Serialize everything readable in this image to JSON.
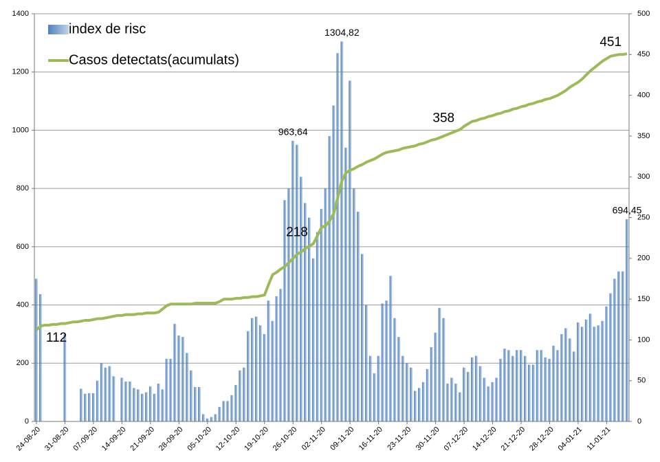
{
  "chart_data": {
    "type": "bar",
    "categories": [
      "24-08-20",
      null,
      null,
      null,
      null,
      null,
      null,
      "31-08-20",
      null,
      null,
      null,
      null,
      null,
      null,
      "07-09-20",
      null,
      null,
      null,
      null,
      null,
      null,
      "14-09-20",
      null,
      null,
      null,
      null,
      null,
      null,
      "21-09-20",
      null,
      null,
      null,
      null,
      null,
      null,
      "28-09-20",
      null,
      null,
      null,
      null,
      null,
      null,
      "05-10-20",
      null,
      null,
      null,
      null,
      null,
      null,
      "12-10-20",
      null,
      null,
      null,
      null,
      null,
      null,
      "19-10-20",
      null,
      null,
      null,
      null,
      null,
      null,
      "26-10-20",
      null,
      null,
      null,
      null,
      null,
      null,
      "02-11-20",
      null,
      null,
      null,
      null,
      null,
      null,
      "09-11-20",
      null,
      null,
      null,
      null,
      null,
      null,
      "16-11-20",
      null,
      null,
      null,
      null,
      null,
      null,
      "23-11-20",
      null,
      null,
      null,
      null,
      null,
      null,
      "30-11-20",
      null,
      null,
      null,
      null,
      null,
      null,
      "07-12-20",
      null,
      null,
      null,
      null,
      null,
      null,
      "14-12-20",
      null,
      null,
      null,
      null,
      null,
      null,
      "21-12-20",
      null,
      null,
      null,
      null,
      null,
      null,
      "28-12-20",
      null,
      null,
      null,
      null,
      null,
      null,
      "04-01-21",
      null,
      null,
      null,
      null,
      null,
      null,
      "11-01-21",
      null,
      null,
      null,
      null,
      null
    ],
    "series": [
      {
        "name": "index de risc",
        "type": "bar",
        "color": "#4f81bd",
        "values": [
          490,
          437,
          null,
          null,
          null,
          null,
          null,
          300,
          null,
          null,
          null,
          112,
          95,
          97,
          97,
          140,
          200,
          185,
          190,
          155,
          null,
          150,
          137,
          137,
          115,
          110,
          95,
          100,
          120,
          95,
          130,
          110,
          215,
          215,
          335,
          295,
          290,
          235,
          175,
          118,
          118,
          25,
          10,
          15,
          25,
          50,
          70,
          70,
          90,
          125,
          175,
          185,
          310,
          355,
          360,
          330,
          300,
          415,
          345,
          430,
          455,
          760,
          800,
          963.64,
          950,
          840,
          750,
          700,
          560,
          650,
          730,
          800,
          980,
          1085,
          1265,
          1304.82,
          940,
          1170,
          800,
          720,
          575,
          400,
          225,
          165,
          225,
          405,
          415,
          500,
          355,
          290,
          225,
          200,
          185,
          105,
          115,
          135,
          180,
          255,
          305,
          390,
          355,
          130,
          150,
          130,
          100,
          185,
          170,
          220,
          225,
          190,
          150,
          120,
          135,
          150,
          215,
          250,
          245,
          225,
          245,
          245,
          225,
          195,
          195,
          245,
          245,
          220,
          215,
          260,
          245,
          300,
          320,
          285,
          240,
          340,
          325,
          350,
          370,
          325,
          330,
          345,
          395,
          440,
          490,
          515,
          515,
          694.45
        ],
        "value_labels": [
          null,
          null,
          null,
          null,
          null,
          null,
          null,
          null,
          null,
          null,
          null,
          null,
          null,
          null,
          null,
          null,
          null,
          null,
          null,
          null,
          null,
          null,
          null,
          null,
          null,
          null,
          null,
          null,
          null,
          null,
          null,
          null,
          null,
          null,
          null,
          null,
          null,
          null,
          null,
          null,
          null,
          null,
          null,
          null,
          null,
          null,
          null,
          null,
          null,
          null,
          null,
          null,
          null,
          null,
          null,
          null,
          null,
          null,
          null,
          null,
          null,
          null,
          null,
          "963,64",
          null,
          null,
          null,
          null,
          null,
          null,
          null,
          null,
          null,
          null,
          null,
          "1304,82",
          null,
          null,
          null,
          null,
          null,
          null,
          null,
          null,
          null,
          null,
          null,
          null,
          null,
          null,
          null,
          null,
          null,
          null,
          null,
          null,
          null,
          null,
          null,
          null,
          null,
          null,
          null,
          null,
          null,
          null,
          null,
          null,
          null,
          null,
          null,
          null,
          null,
          null,
          null,
          null,
          null,
          null,
          null,
          null,
          null,
          null,
          null,
          null,
          null,
          null,
          null,
          null,
          null,
          null,
          null,
          null,
          null,
          null,
          null,
          null,
          null,
          null,
          null,
          null,
          null,
          null,
          null,
          null,
          null,
          "694,45"
        ]
      },
      {
        "name": "Casos detectats(acumulats)",
        "type": "line",
        "axis": "y2",
        "color": "#9bbb59",
        "values": [
          112,
          117,
          118,
          118,
          119,
          119,
          120,
          120,
          121,
          122,
          122,
          123,
          124,
          124,
          125,
          126,
          126,
          127,
          128,
          129,
          130,
          130,
          131,
          131,
          131,
          132,
          132,
          133,
          133,
          133,
          134,
          138,
          142,
          144,
          144,
          144,
          144,
          144,
          144,
          145,
          145,
          145,
          145,
          145,
          145,
          147,
          150,
          150,
          150,
          151,
          151,
          152,
          152,
          153,
          153,
          154,
          155,
          168,
          180,
          183,
          187,
          190,
          195,
          200,
          205,
          208,
          212,
          215,
          218,
          228,
          238,
          240,
          246,
          255,
          275,
          295,
          305,
          308,
          310,
          313,
          315,
          318,
          320,
          322,
          325,
          328,
          330,
          331,
          332,
          333,
          335,
          336,
          337,
          338,
          340,
          341,
          343,
          345,
          346,
          348,
          350,
          352,
          354,
          356,
          358,
          362,
          365,
          368,
          369,
          371,
          372,
          374,
          375,
          377,
          378,
          380,
          381,
          383,
          384,
          386,
          387,
          389,
          390,
          392,
          393,
          395,
          396,
          398,
          400,
          403,
          406,
          410,
          413,
          416,
          420,
          425,
          430,
          434,
          438,
          442,
          445,
          448,
          449,
          450,
          450,
          451
        ],
        "value_labels": [
          "112",
          null,
          null,
          null,
          null,
          null,
          null,
          null,
          null,
          null,
          null,
          null,
          null,
          null,
          null,
          null,
          null,
          null,
          null,
          null,
          null,
          null,
          null,
          null,
          null,
          null,
          null,
          null,
          null,
          null,
          null,
          null,
          null,
          null,
          null,
          null,
          null,
          null,
          null,
          null,
          null,
          null,
          null,
          null,
          null,
          null,
          null,
          null,
          null,
          null,
          null,
          null,
          null,
          null,
          null,
          null,
          null,
          null,
          null,
          null,
          null,
          null,
          null,
          null,
          null,
          null,
          null,
          null,
          "218",
          null,
          null,
          null,
          null,
          null,
          null,
          null,
          null,
          null,
          null,
          null,
          null,
          null,
          null,
          null,
          null,
          null,
          null,
          null,
          null,
          null,
          null,
          null,
          null,
          null,
          null,
          null,
          null,
          null,
          null,
          null,
          null,
          null,
          null,
          null,
          "358",
          null,
          null,
          null,
          null,
          null,
          null,
          null,
          null,
          null,
          null,
          null,
          null,
          null,
          null,
          null,
          null,
          null,
          null,
          null,
          null,
          null,
          null,
          null,
          null,
          null,
          null,
          null,
          null,
          null,
          null,
          null,
          null,
          null,
          null,
          null,
          null,
          null,
          null,
          null,
          null,
          "451"
        ]
      }
    ],
    "ylim": [
      0,
      1400
    ],
    "yticks": [
      0,
      200,
      400,
      600,
      800,
      1000,
      1200,
      1400
    ],
    "y2lim": [
      0,
      500
    ],
    "y2ticks": [
      0,
      50,
      100,
      150,
      200,
      250,
      300,
      350,
      400,
      450,
      500
    ],
    "grid": true,
    "legend": "top-left"
  }
}
